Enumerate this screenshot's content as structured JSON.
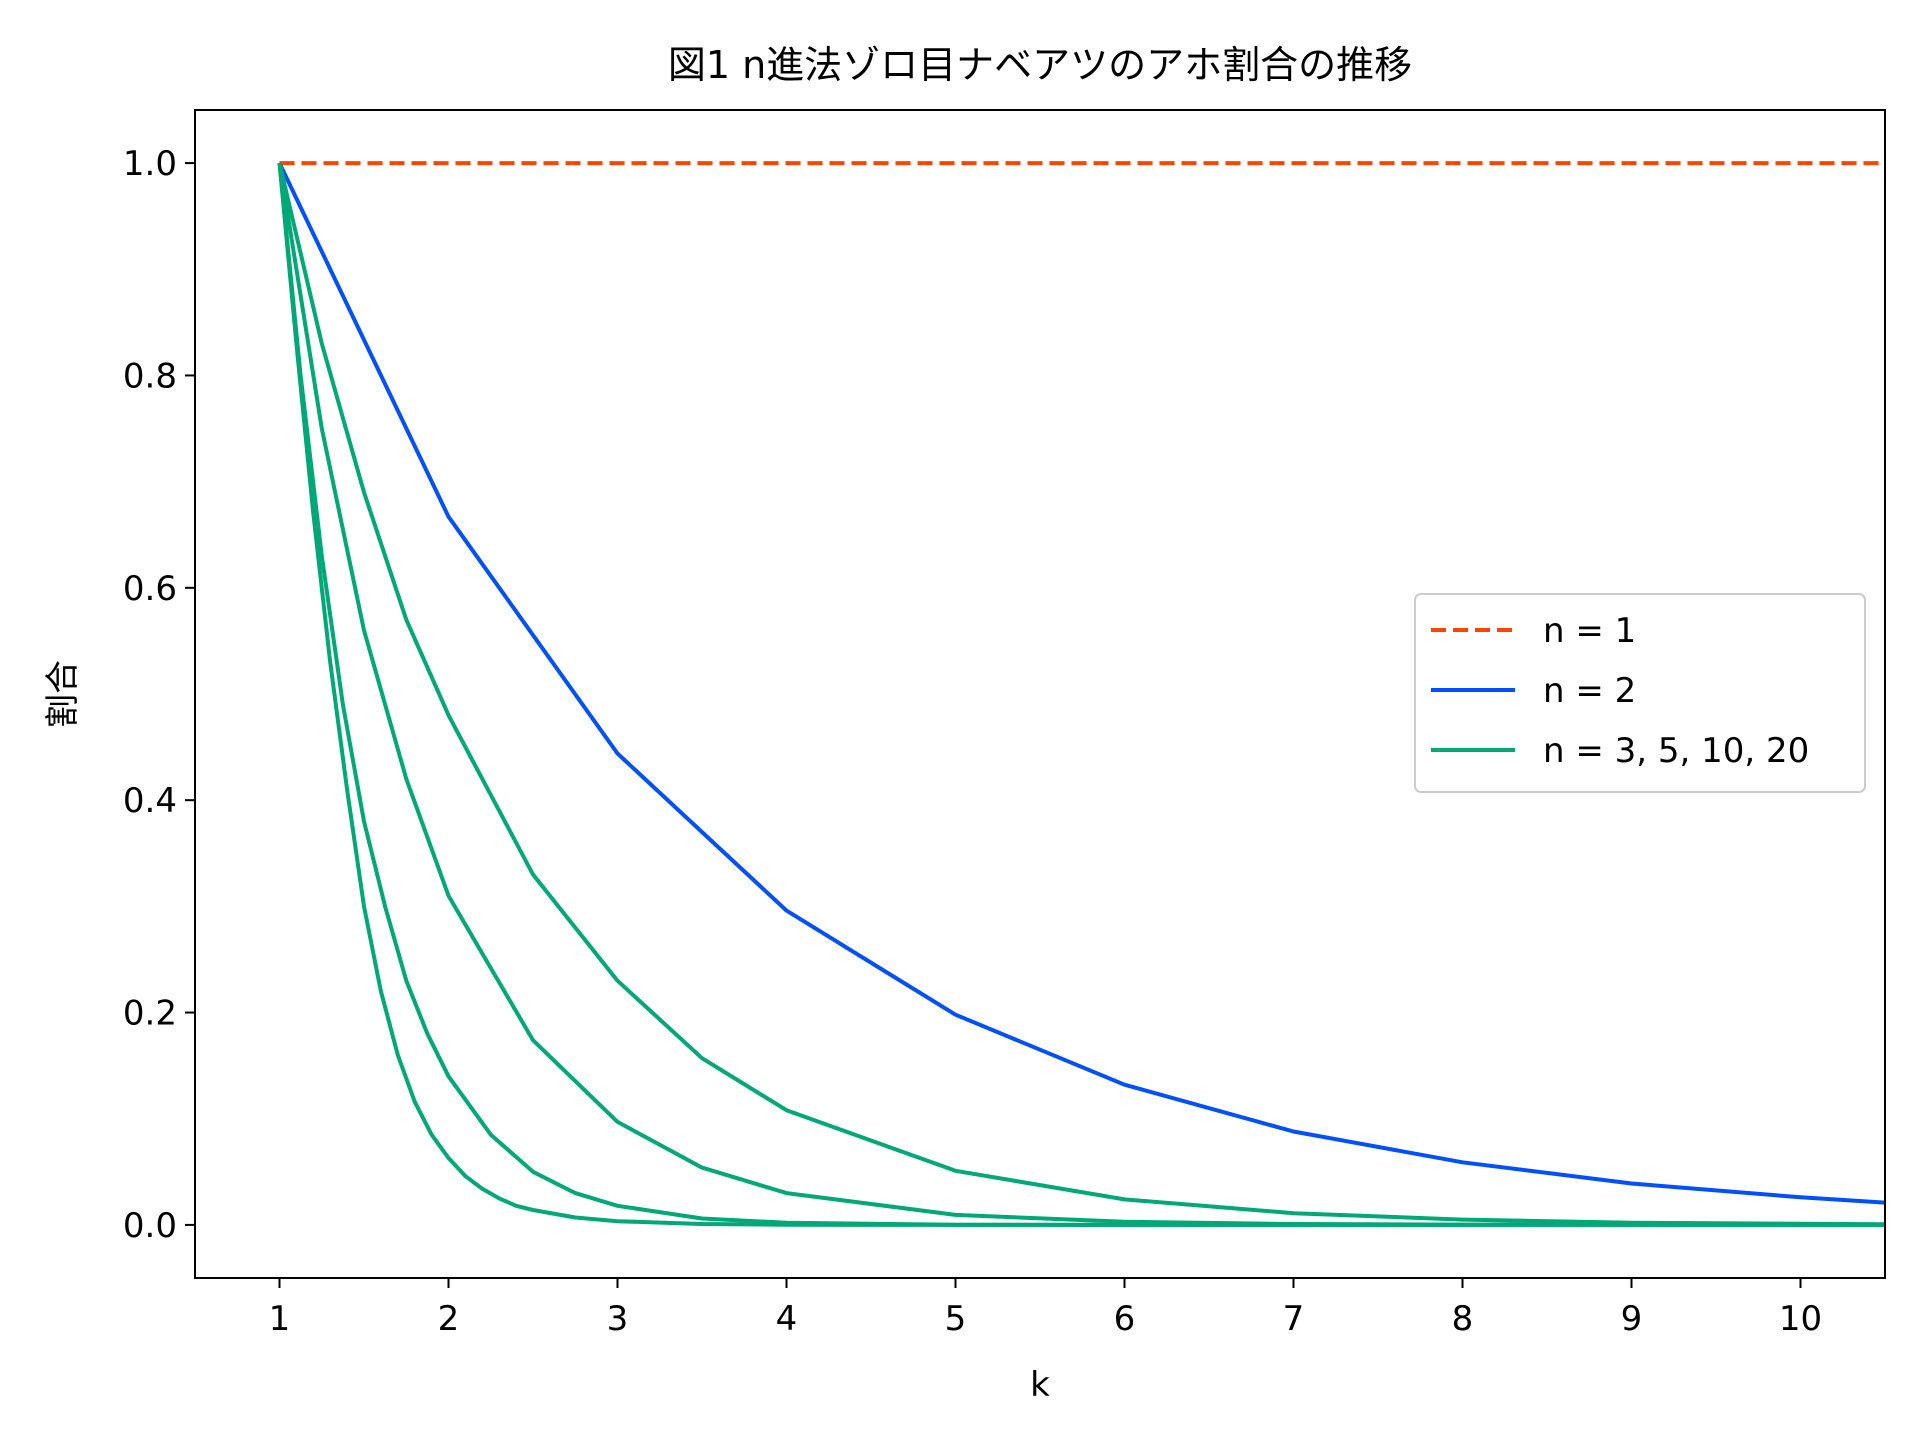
{
  "chart_data": {
    "type": "line",
    "title": "図1 n進法ゾロ目ナベアツのアホ割合の推移",
    "xlabel": "k",
    "ylabel": "割合",
    "xlim": [
      0.5,
      10.5
    ],
    "ylim": [
      -0.05,
      1.05
    ],
    "xticks": [
      "1",
      "2",
      "3",
      "4",
      "5",
      "6",
      "7",
      "8",
      "9",
      "10"
    ],
    "yticks": [
      "0.0",
      "0.2",
      "0.4",
      "0.6",
      "0.8",
      "1.0"
    ],
    "grid": false,
    "legend_position": "center-right",
    "legend": [
      {
        "label": "n = 1",
        "color": "#ff4500",
        "style": "dashed"
      },
      {
        "label": "n = 2",
        "color": "#0050ff",
        "style": "solid"
      },
      {
        "label": "n = 3, 5, 10, 20",
        "color": "#00a878",
        "style": "solid"
      }
    ],
    "series": [
      {
        "legend_group": "n = 1",
        "color": "#ff4500",
        "style": "dashed",
        "x": [
          1,
          10.5
        ],
        "y": [
          1.0,
          1.0
        ]
      },
      {
        "legend_group": "n = 2",
        "color": "#0050ff",
        "style": "solid",
        "x": [
          1,
          2,
          3,
          4,
          5,
          6,
          7,
          8,
          9,
          10,
          10.5
        ],
        "y": [
          1.0,
          0.667,
          0.444,
          0.296,
          0.198,
          0.132,
          0.088,
          0.059,
          0.039,
          0.026,
          0.021
        ]
      },
      {
        "legend_group": "n = 3, 5, 10, 20",
        "color": "#00a878",
        "style": "solid",
        "x": [
          1,
          1.25,
          1.5,
          1.75,
          2,
          2.5,
          3,
          3.5,
          4,
          5,
          6,
          7,
          8,
          9,
          10,
          10.5
        ],
        "y": [
          1.0,
          0.83,
          0.69,
          0.57,
          0.48,
          0.33,
          0.23,
          0.157,
          0.108,
          0.051,
          0.024,
          0.011,
          0.005,
          0.002,
          0.001,
          0.0007
        ]
      },
      {
        "legend_group": "n = 3, 5, 10, 20",
        "color": "#00a878",
        "style": "solid",
        "x": [
          1,
          1.25,
          1.5,
          1.75,
          2,
          2.5,
          3,
          3.5,
          4,
          5,
          6,
          7,
          8,
          10.5
        ],
        "y": [
          1.0,
          0.75,
          0.56,
          0.42,
          0.31,
          0.174,
          0.097,
          0.054,
          0.03,
          0.0094,
          0.0029,
          0.0009,
          0.0003,
          0.0
        ]
      },
      {
        "legend_group": "n = 3, 5, 10, 20",
        "color": "#00a878",
        "style": "solid",
        "x": [
          1,
          1.125,
          1.25,
          1.375,
          1.5,
          1.625,
          1.75,
          1.875,
          2,
          2.25,
          2.5,
          2.75,
          3,
          3.5,
          4,
          5,
          6,
          10.5
        ],
        "y": [
          1.0,
          0.8,
          0.63,
          0.49,
          0.38,
          0.3,
          0.23,
          0.18,
          0.14,
          0.085,
          0.05,
          0.03,
          0.018,
          0.006,
          0.002,
          0.0002,
          0.0,
          0.0
        ]
      },
      {
        "legend_group": "n = 3, 5, 10, 20",
        "color": "#00a878",
        "style": "solid",
        "x": [
          1,
          1.1,
          1.2,
          1.3,
          1.4,
          1.5,
          1.6,
          1.7,
          1.8,
          1.9,
          2,
          2.1,
          2.2,
          2.3,
          2.4,
          2.5,
          2.75,
          3,
          3.5,
          4,
          5,
          10.5
        ],
        "y": [
          1.0,
          0.83,
          0.67,
          0.53,
          0.41,
          0.3,
          0.22,
          0.16,
          0.116,
          0.085,
          0.063,
          0.046,
          0.034,
          0.025,
          0.018,
          0.014,
          0.007,
          0.0035,
          0.0009,
          0.0002,
          0.0,
          0.0
        ]
      }
    ]
  }
}
